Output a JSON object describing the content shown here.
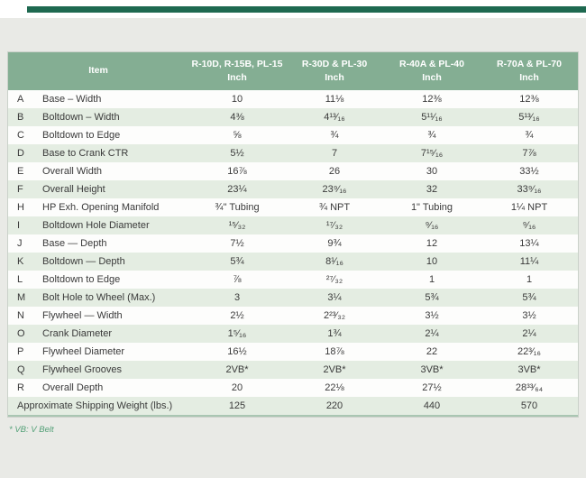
{
  "page": {
    "background_color": "#e9eae6",
    "top_bar_color": "#1e6950",
    "header_green": "#84ae93",
    "stripe_green": "#e4ede2",
    "footnote_green": "#53a077"
  },
  "footnote": "* VB: V Belt",
  "table": {
    "header": {
      "item_label": "Item",
      "columns": [
        {
          "label": "R-10D, R-15B, PL-15",
          "unit": "Inch"
        },
        {
          "label": "R-30D & PL-30",
          "unit": "Inch"
        },
        {
          "label": "R-40A & PL-40",
          "unit": "Inch"
        },
        {
          "label": "R-70A & PL-70",
          "unit": "Inch"
        }
      ]
    },
    "rows": [
      {
        "letter": "A",
        "item": "Base – Width",
        "values": [
          "10",
          "11⅛",
          "12⅜",
          "12⅜"
        ]
      },
      {
        "letter": "B",
        "item": "Boltdown – Width",
        "values": [
          "4⅜",
          "4¹³⁄₁₆",
          "5¹¹⁄₁₆",
          "5¹³⁄₁₆"
        ]
      },
      {
        "letter": "C",
        "item": "Boltdown to Edge",
        "values": [
          "⅝",
          "¾",
          "¾",
          "¾"
        ]
      },
      {
        "letter": "D",
        "item": "Base to Crank CTR",
        "values": [
          "5½",
          "7",
          "7¹⁵⁄₁₆",
          "7⅞"
        ]
      },
      {
        "letter": "E",
        "item": "Overall Width",
        "values": [
          "16⅞",
          "26",
          "30",
          "33½"
        ]
      },
      {
        "letter": "F",
        "item": "Overall Height",
        "values": [
          "23¼",
          "23⁹⁄₁₆",
          "32",
          "33⁹⁄₁₆"
        ]
      },
      {
        "letter": "H",
        "item": "HP Exh. Opening Manifold",
        "values": [
          "¾\" Tubing",
          "¾ NPT",
          "1\" Tubing",
          "1¼ NPT"
        ]
      },
      {
        "letter": "I",
        "item": "Boltdown Hole Diameter",
        "values": [
          "¹⁵⁄₃₂",
          "¹⁷⁄₃₂",
          "⁹⁄₁₆",
          "⁹⁄₁₆"
        ]
      },
      {
        "letter": "J",
        "item": "Base — Depth",
        "values": [
          "7½",
          "9¾",
          "12",
          "13¼"
        ]
      },
      {
        "letter": "K",
        "item": "Boltdown — Depth",
        "values": [
          "5¾",
          "8¹⁄₁₆",
          "10",
          "11¼"
        ]
      },
      {
        "letter": "L",
        "item": "Boltdown to Edge",
        "values": [
          "⅞",
          "²⁷⁄₃₂",
          "1",
          "1"
        ]
      },
      {
        "letter": "M",
        "item": "Bolt Hole to Wheel (Max.)",
        "values": [
          "3",
          "3¼",
          "5¾",
          "5¾"
        ]
      },
      {
        "letter": "N",
        "item": "Flywheel — Width",
        "values": [
          "2½",
          "2²³⁄₃₂",
          "3½",
          "3½"
        ]
      },
      {
        "letter": "O",
        "item": "Crank Diameter",
        "values": [
          "1⁵⁄₁₆",
          "1¾",
          "2¼",
          "2¼"
        ]
      },
      {
        "letter": "P",
        "item": "Flywheel Diameter",
        "values": [
          "16½",
          "18⅞",
          "22",
          "22³⁄₁₆"
        ]
      },
      {
        "letter": "Q",
        "item": "Flywheel Grooves",
        "values": [
          "2VB*",
          "2VB*",
          "3VB*",
          "3VB*"
        ]
      },
      {
        "letter": "R",
        "item": "Overall Depth",
        "values": [
          "20",
          "22⅛",
          "27½",
          "28³³⁄₆₄"
        ]
      }
    ],
    "footer_row": {
      "label": "Approximate Shipping Weight (lbs.)",
      "values": [
        "125",
        "220",
        "440",
        "570"
      ]
    }
  }
}
